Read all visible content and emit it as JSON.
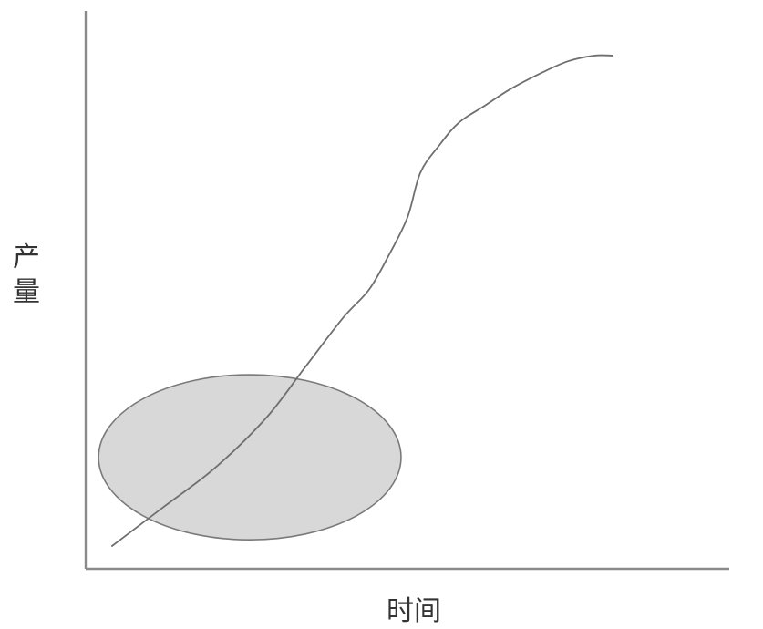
{
  "chart_data": {
    "type": "line",
    "xlabel": "时间",
    "ylabel_chars": [
      "产",
      "量"
    ],
    "grid": false,
    "legend": "none",
    "xlim": [
      0,
      1
    ],
    "ylim": [
      0,
      1
    ],
    "series": [
      {
        "x": [
          0.04,
          0.12,
          0.2,
          0.28,
          0.34,
          0.4,
          0.44,
          0.47,
          0.5,
          0.52,
          0.55,
          0.58,
          0.62,
          0.66,
          0.71,
          0.75,
          0.79,
          0.82
        ],
        "y": [
          0.04,
          0.11,
          0.18,
          0.27,
          0.36,
          0.45,
          0.5,
          0.56,
          0.63,
          0.71,
          0.76,
          0.8,
          0.83,
          0.86,
          0.89,
          0.91,
          0.92,
          0.92
        ]
      }
    ],
    "annotations": [
      {
        "shape": "ellipse",
        "fill": "#d8d8d8",
        "cx": 0.255,
        "cy": 0.2,
        "rx": 0.235,
        "ry": 0.148
      }
    ]
  }
}
